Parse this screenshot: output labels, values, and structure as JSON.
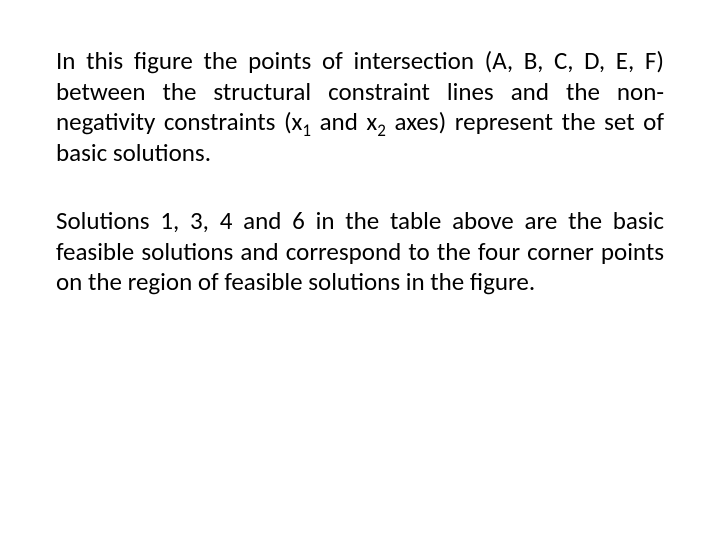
{
  "text_color": "#000000",
  "background_color": "#ffffff",
  "font_size_pt": 25,
  "paragraphs": {
    "p1": {
      "seg1": "In this figure the points of intersection (A, B, C, D, E, F) between the structural constraint lines and the non-negativity constraints (x",
      "sub1": "1",
      "seg2": " and x",
      "sub2": "2",
      "seg3": " axes) represent the set of basic solutions."
    },
    "p2": {
      "seg1": "Solutions 1, 3, 4 and 6 in the table above are the basic feasible solutions and correspond to the four corner points on the region of feasible solutions in the figure."
    }
  }
}
